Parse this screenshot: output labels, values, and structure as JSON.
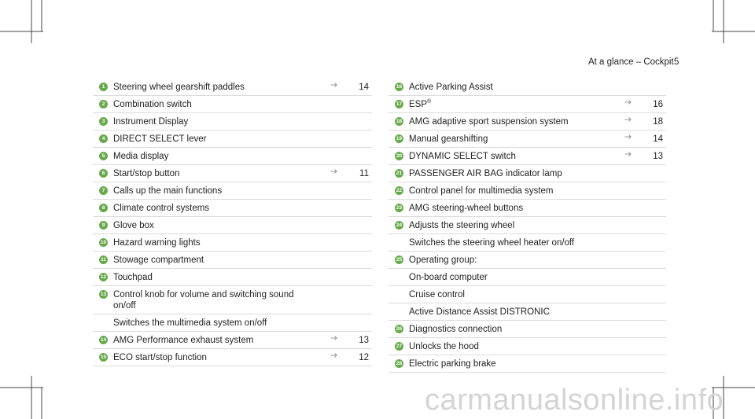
{
  "header": {
    "section": "At a glance – Cockpit",
    "page": "5"
  },
  "left_items": [
    {
      "number": "1",
      "lines": [
        "Steering wheel gearshift paddles"
      ],
      "page": "14"
    },
    {
      "number": "2",
      "lines": [
        "Combination switch"
      ]
    },
    {
      "number": "3",
      "lines": [
        "Instrument Display"
      ]
    },
    {
      "number": "4",
      "lines": [
        "DIRECT SELECT lever"
      ]
    },
    {
      "number": "5",
      "lines": [
        "Media display"
      ]
    },
    {
      "number": "6",
      "lines": [
        "Start/stop button"
      ],
      "page": "11"
    },
    {
      "number": "7",
      "lines": [
        "Calls up the main functions"
      ]
    },
    {
      "number": "8",
      "lines": [
        "Climate control systems"
      ]
    },
    {
      "number": "9",
      "lines": [
        "Glove box"
      ]
    },
    {
      "number": "10",
      "lines": [
        "Hazard warning lights"
      ]
    },
    {
      "number": "11",
      "lines": [
        "Stowage compartment"
      ]
    },
    {
      "number": "12",
      "lines": [
        "Touchpad"
      ]
    },
    {
      "number": "13",
      "lines": [
        "Control knob for volume and switching sound",
        "on/off"
      ]
    },
    {
      "lines": [
        "Switches the multimedia system on/off"
      ]
    },
    {
      "number": "14",
      "lines": [
        "AMG Performance exhaust system"
      ],
      "page": "13"
    },
    {
      "number": "15",
      "lines": [
        "ECO start/stop function"
      ],
      "page": "12"
    }
  ],
  "right_items": [
    {
      "number": "16",
      "lines": [
        "Active Parking Assist"
      ]
    },
    {
      "number": "17",
      "lines": [
        "ESP"
      ],
      "sup": "®",
      "page": "16"
    },
    {
      "number": "18",
      "lines": [
        "AMG adaptive sport suspension system"
      ],
      "page": "18"
    },
    {
      "number": "19",
      "lines": [
        "Manual gearshifting"
      ],
      "page": "14"
    },
    {
      "number": "20",
      "lines": [
        "DYNAMIC SELECT switch"
      ],
      "page": "13"
    },
    {
      "number": "21",
      "lines": [
        "PASSENGER AIR BAG indicator lamp"
      ]
    },
    {
      "number": "22",
      "lines": [
        "Control panel for multimedia system"
      ]
    },
    {
      "number": "23",
      "lines": [
        "AMG steering-wheel buttons"
      ]
    },
    {
      "number": "24",
      "lines": [
        "Adjusts the steering wheel"
      ]
    },
    {
      "lines": [
        "Switches the steering wheel heater on/off"
      ]
    },
    {
      "number": "25",
      "lines": [
        "Operating group:"
      ]
    },
    {
      "lines": [
        "On-board computer"
      ]
    },
    {
      "lines": [
        "Cruise control"
      ]
    },
    {
      "lines": [
        "Active Distance Assist DISTRONIC"
      ]
    },
    {
      "number": "26",
      "lines": [
        "Diagnostics connection"
      ]
    },
    {
      "number": "27",
      "lines": [
        "Unlocks the hood"
      ]
    },
    {
      "number": "28",
      "lines": [
        "Electric parking brake"
      ]
    }
  ],
  "watermark": "carmanualsonline.info"
}
